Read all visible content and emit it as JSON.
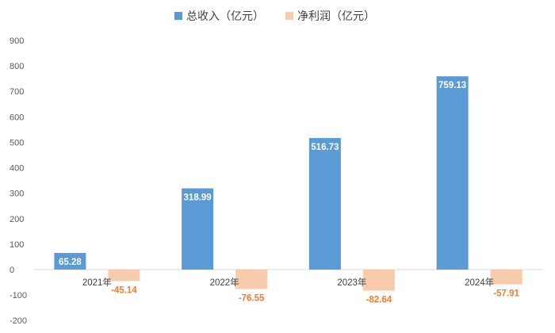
{
  "chart_data": {
    "type": "bar",
    "categories": [
      "2021年",
      "2022年",
      "2023年",
      "2024年"
    ],
    "series": [
      {
        "name": "总收入（亿元）",
        "values": [
          65.28,
          318.99,
          516.73,
          759.13
        ],
        "labels": [
          "65.28",
          "318.99",
          "516.73",
          "759.13"
        ],
        "color": "#5B9BD5"
      },
      {
        "name": "净利润（亿元）",
        "values": [
          -45.14,
          -76.55,
          -82.64,
          -57.91
        ],
        "labels": [
          "-45.14",
          "-76.55",
          "-82.64",
          "-57.91"
        ],
        "color": "#F8CBAD"
      }
    ],
    "yticks": [
      "900",
      "800",
      "700",
      "600",
      "500",
      "400",
      "300",
      "200",
      "100",
      "0",
      "-100",
      "-200"
    ],
    "ylim": [
      -200,
      900
    ],
    "grid": false,
    "legend_position": "top",
    "label_colors": {
      "positive": "#FFFFFF",
      "negative": "#ED7D31"
    }
  }
}
